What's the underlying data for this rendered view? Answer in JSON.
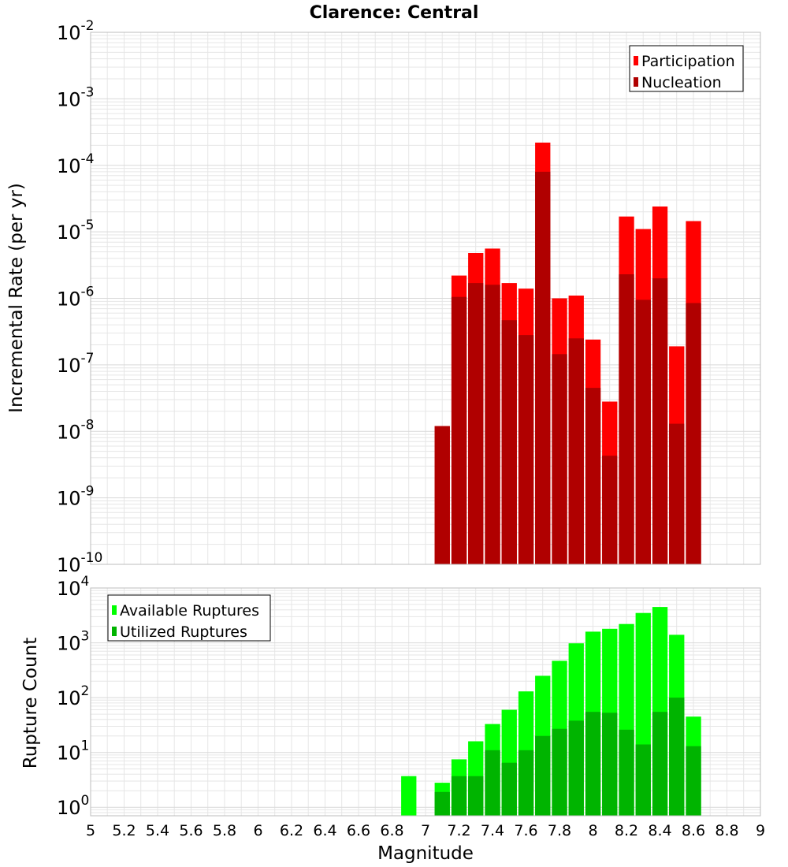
{
  "title": "Clarence: Central",
  "colors": {
    "participation": "#ff0000",
    "nucleation": "#b00000",
    "available": "#00ff00",
    "utilized": "#00b400",
    "grid": "#e6e6e6",
    "frame": "#bdbdbd"
  },
  "chart_data": [
    {
      "type": "bar",
      "panel": "top",
      "title": "Clarence: Central",
      "xlabel": "",
      "ylabel": "Incremental Rate (per yr)",
      "xlim": [
        5,
        9
      ],
      "ylim": [
        1e-10,
        0.01
      ],
      "yscale": "log",
      "ytick_exponents": [
        "-2",
        "-3",
        "-4",
        "-5",
        "-6",
        "-7",
        "-8",
        "-9",
        "-10"
      ],
      "legend": {
        "position": "top-right",
        "entries": [
          "Participation",
          "Nucleation"
        ]
      },
      "grid": true,
      "x": [
        7.1,
        7.2,
        7.3,
        7.4,
        7.5,
        7.6,
        7.7,
        7.8,
        7.9,
        8.0,
        8.1,
        8.2,
        8.3,
        8.4,
        8.5,
        8.6
      ],
      "series": [
        {
          "name": "Participation",
          "values": [
            1.2e-08,
            2.2e-06,
            4.8e-06,
            5.6e-06,
            1.7e-06,
            1.4e-06,
            0.00022,
            1e-06,
            1.1e-06,
            2.4e-07,
            2.8e-08,
            1.7e-05,
            1.1e-05,
            2.4e-05,
            1.9e-07,
            1.45e-05
          ]
        },
        {
          "name": "Nucleation",
          "values": [
            1.2e-08,
            1.05e-06,
            1.7e-06,
            1.6e-06,
            4.7e-07,
            2.8e-07,
            8e-05,
            1.45e-07,
            2.5e-07,
            4.5e-08,
            4.3e-09,
            2.3e-06,
            9.5e-07,
            2e-06,
            1.3e-08,
            8.5e-07
          ]
        }
      ]
    },
    {
      "type": "bar",
      "panel": "bottom",
      "xlabel": "Magnitude",
      "ylabel": "Rupture Count",
      "xlim": [
        5,
        9
      ],
      "ylim": [
        0.7,
        10000
      ],
      "yscale": "log",
      "ytick_exponents": [
        "4",
        "3",
        "2",
        "1",
        "0"
      ],
      "xticks": [
        "5",
        "5.2",
        "5.4",
        "5.6",
        "5.8",
        "6",
        "6.2",
        "6.4",
        "6.6",
        "6.8",
        "7",
        "7.2",
        "7.4",
        "7.6",
        "7.8",
        "8",
        "8.2",
        "8.4",
        "8.6",
        "8.8",
        "9"
      ],
      "legend": {
        "position": "top-left",
        "entries": [
          "Available Ruptures",
          "Utilized Ruptures"
        ]
      },
      "grid": true,
      "x": [
        6.9,
        7.1,
        7.2,
        7.3,
        7.4,
        7.5,
        7.6,
        7.7,
        7.8,
        7.9,
        8.0,
        8.1,
        8.2,
        8.3,
        8.4,
        8.5,
        8.6
      ],
      "series": [
        {
          "name": "Available Ruptures",
          "values": [
            3.7,
            2.8,
            7.5,
            16,
            33,
            60,
            130,
            250,
            470,
            980,
            1600,
            1800,
            2200,
            3500,
            4500,
            1400,
            45
          ]
        },
        {
          "name": "Utilized Ruptures",
          "values": [
            0,
            1.9,
            3.7,
            3.7,
            11,
            6.5,
            11,
            20,
            27,
            38,
            55,
            53,
            26,
            14,
            55,
            100,
            13
          ]
        }
      ]
    }
  ]
}
